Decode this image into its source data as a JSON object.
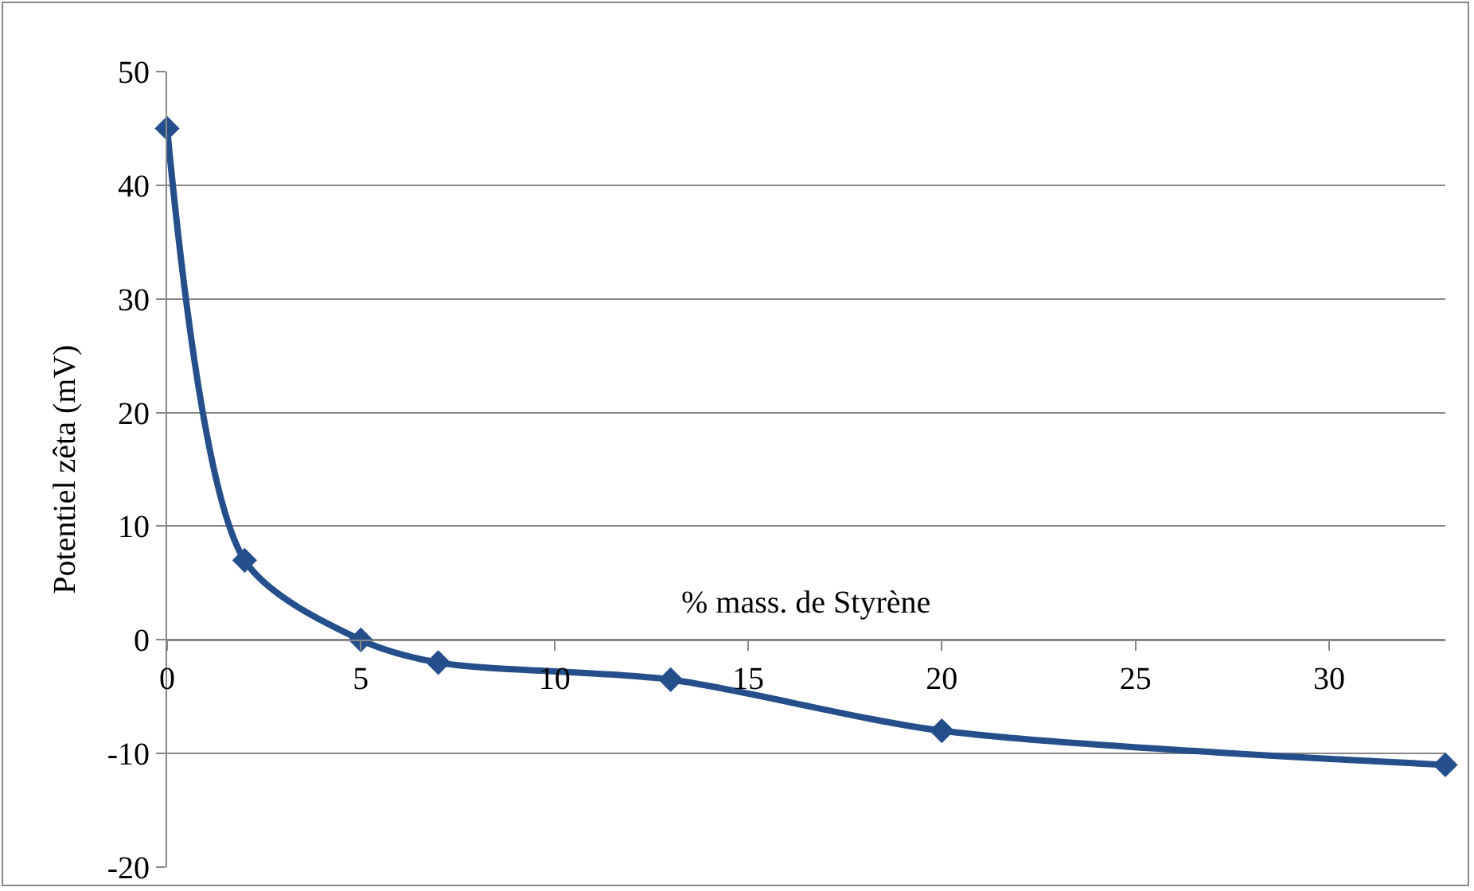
{
  "chart_data": {
    "type": "line",
    "xlabel": "% mass. de Styrène",
    "ylabel": "Potentiel zêta (mV)",
    "x": [
      0,
      2,
      5,
      7,
      13,
      20,
      33
    ],
    "series": [
      {
        "color": "#254f8a",
        "values": [
          45,
          7,
          0,
          -2,
          -3.5,
          -8,
          -11
        ]
      }
    ],
    "xlim": [
      0,
      33
    ],
    "xticks": [
      0,
      5,
      10,
      15,
      20,
      25,
      30
    ],
    "ylim": [
      -20,
      50
    ],
    "yticks": [
      -20,
      -10,
      0,
      10,
      20,
      30,
      40,
      50
    ],
    "grid": "y",
    "marker": "diamond",
    "line_style": "solid"
  }
}
